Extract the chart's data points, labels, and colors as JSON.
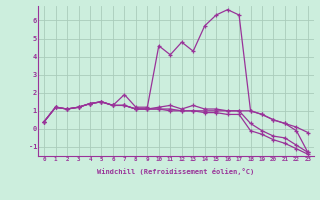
{
  "xlabel": "Windchill (Refroidissement éolien,°C)",
  "x_values": [
    0,
    1,
    2,
    3,
    4,
    5,
    6,
    7,
    8,
    9,
    10,
    11,
    12,
    13,
    14,
    15,
    16,
    17,
    18,
    19,
    20,
    21,
    22,
    23
  ],
  "line1": [
    0.4,
    1.2,
    1.1,
    1.2,
    1.4,
    1.5,
    1.3,
    1.9,
    1.2,
    1.2,
    4.6,
    4.1,
    4.8,
    4.3,
    5.7,
    6.3,
    6.6,
    6.3,
    1.0,
    0.8,
    0.5,
    0.3,
    -0.1,
    -1.3
  ],
  "line2": [
    0.4,
    1.2,
    1.1,
    1.2,
    1.4,
    1.5,
    1.3,
    1.3,
    1.1,
    1.1,
    1.2,
    1.3,
    1.1,
    1.3,
    1.1,
    1.1,
    1.0,
    1.0,
    1.0,
    0.8,
    0.5,
    0.3,
    0.1,
    -0.2
  ],
  "line3": [
    0.4,
    1.2,
    1.1,
    1.2,
    1.4,
    1.5,
    1.3,
    1.3,
    1.1,
    1.1,
    1.1,
    1.1,
    1.0,
    1.0,
    1.0,
    1.0,
    1.0,
    1.0,
    0.3,
    -0.1,
    -0.4,
    -0.5,
    -0.9,
    -1.3
  ],
  "line4": [
    0.4,
    1.2,
    1.1,
    1.2,
    1.4,
    1.5,
    1.3,
    1.3,
    1.1,
    1.1,
    1.1,
    1.0,
    1.0,
    1.0,
    0.9,
    0.9,
    0.8,
    0.8,
    -0.1,
    -0.3,
    -0.6,
    -0.8,
    -1.1,
    -1.4
  ],
  "bg_color": "#cceedd",
  "line_color": "#993399",
  "grid_color": "#aaccbb",
  "ylim": [
    -1.5,
    6.8
  ],
  "xlim": [
    -0.5,
    23.5
  ],
  "yticks": [
    -1,
    0,
    1,
    2,
    3,
    4,
    5,
    6
  ],
  "xticks": [
    0,
    1,
    2,
    3,
    4,
    5,
    6,
    7,
    8,
    9,
    10,
    11,
    12,
    13,
    14,
    15,
    16,
    17,
    18,
    19,
    20,
    21,
    22,
    23
  ]
}
